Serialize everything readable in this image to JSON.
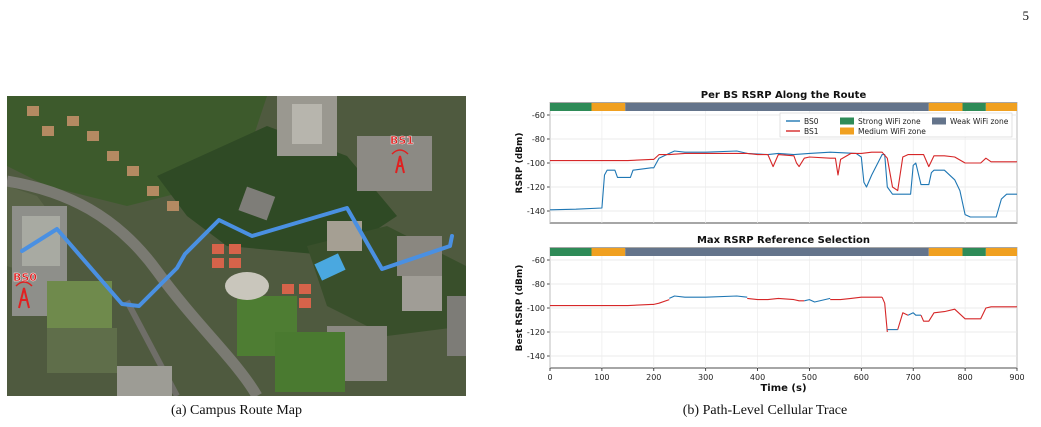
{
  "page_number": "5",
  "map": {
    "route_color": "#4a90e2",
    "labels": [
      {
        "text": "BS1",
        "color": "#e02020"
      },
      {
        "text": "BS0",
        "color": "#e02020"
      }
    ]
  },
  "captions": {
    "a": "(a) Campus Route Map",
    "b": "(b) Path-Level Cellular Trace"
  },
  "chart_data": [
    {
      "type": "line",
      "title": "Per BS RSRP Along the Route",
      "xlabel": "",
      "ylabel": "RSRP (dBm)",
      "xlim": [
        0,
        900
      ],
      "ylim": [
        -150,
        -50
      ],
      "yticks": [
        -60,
        -80,
        -100,
        -120,
        -140
      ],
      "grid": true,
      "legend_position": "top-right",
      "zones": [
        {
          "label": "Strong WiFi zone",
          "color": "#2e8b57",
          "start": 0,
          "end": 80
        },
        {
          "label": "Medium WiFi zone",
          "color": "#f0a020",
          "start": 80,
          "end": 145
        },
        {
          "label": "Weak WiFi zone",
          "color": "#64748b",
          "start": 145,
          "end": 730
        },
        {
          "label": "Medium WiFi zone",
          "color": "#f0a020",
          "start": 730,
          "end": 795
        },
        {
          "label": "Strong WiFi zone",
          "color": "#2e8b57",
          "start": 795,
          "end": 840
        },
        {
          "label": "Medium WiFi zone",
          "color": "#f0a020",
          "start": 840,
          "end": 900
        }
      ],
      "legend": [
        {
          "label": "BS0",
          "kind": "line",
          "color": "#1f77b4"
        },
        {
          "label": "BS1",
          "kind": "line",
          "color": "#d62728"
        },
        {
          "label": "Strong WiFi zone",
          "kind": "patch",
          "color": "#2e8b57"
        },
        {
          "label": "Medium WiFi zone",
          "kind": "patch",
          "color": "#f0a020"
        },
        {
          "label": "Weak WiFi zone",
          "kind": "patch",
          "color": "#64748b"
        }
      ],
      "series": [
        {
          "name": "BS0",
          "color": "#1f77b4",
          "x": [
            0,
            50,
            100,
            105,
            110,
            125,
            130,
            155,
            160,
            195,
            200,
            210,
            230,
            240,
            260,
            300,
            360,
            380,
            420,
            440,
            470,
            500,
            540,
            590,
            600,
            605,
            610,
            620,
            640,
            645,
            650,
            660,
            665,
            670,
            695,
            700,
            705,
            715,
            720,
            730,
            735,
            740,
            760,
            780,
            790,
            800,
            810,
            830,
            840,
            850,
            860,
            870,
            880,
            890,
            900
          ],
          "y": [
            -139,
            -138.5,
            -137.5,
            -110,
            -106,
            -106,
            -112,
            -112,
            -106,
            -104,
            -104,
            -96,
            -92,
            -90,
            -91,
            -91,
            -90,
            -92,
            -93,
            -92,
            -93,
            -92,
            -91,
            -92,
            -95,
            -116,
            -120,
            -110,
            -93,
            -93,
            -120,
            -126,
            -126,
            -126,
            -126,
            -102,
            -100,
            -118,
            -118,
            -118,
            -108,
            -106,
            -106,
            -114,
            -123,
            -143,
            -145,
            -145,
            -145,
            -145,
            -145,
            -130,
            -126,
            -126,
            -126
          ]
        },
        {
          "name": "BS1",
          "color": "#d62728",
          "x": [
            0,
            100,
            150,
            195,
            200,
            210,
            230,
            260,
            300,
            360,
            380,
            400,
            420,
            430,
            440,
            470,
            475,
            480,
            490,
            500,
            540,
            550,
            555,
            560,
            580,
            590,
            600,
            620,
            630,
            640,
            650,
            660,
            670,
            680,
            690,
            700,
            720,
            730,
            740,
            760,
            780,
            800,
            830,
            840,
            850,
            870,
            900
          ],
          "y": [
            -98,
            -98,
            -98,
            -97,
            -97,
            -93,
            -93,
            -92,
            -92,
            -92,
            -92,
            -93,
            -93,
            -103,
            -93,
            -94,
            -100,
            -103,
            -96,
            -95,
            -96,
            -96,
            -110,
            -97,
            -92,
            -92,
            -92,
            -91,
            -91,
            -91,
            -96,
            -120,
            -123,
            -95,
            -93,
            -93,
            -93,
            -103,
            -94,
            -94,
            -95,
            -100,
            -100,
            -96,
            -99,
            -99,
            -99
          ]
        }
      ]
    },
    {
      "type": "line",
      "title": "Max RSRP Reference Selection",
      "xlabel": "Time (s)",
      "ylabel": "Best RSRP (dBm)",
      "xlim": [
        0,
        900
      ],
      "ylim": [
        -150,
        -50
      ],
      "xticks": [
        0,
        100,
        200,
        300,
        400,
        500,
        600,
        700,
        800,
        900
      ],
      "yticks": [
        -60,
        -80,
        -100,
        -120,
        -140
      ],
      "grid": true,
      "zones": [
        {
          "label": "Strong WiFi zone",
          "color": "#2e8b57",
          "start": 0,
          "end": 80
        },
        {
          "label": "Medium WiFi zone",
          "color": "#f0a020",
          "start": 80,
          "end": 145
        },
        {
          "label": "Weak WiFi zone",
          "color": "#64748b",
          "start": 145,
          "end": 730
        },
        {
          "label": "Medium WiFi zone",
          "color": "#f0a020",
          "start": 730,
          "end": 795
        },
        {
          "label": "Strong WiFi zone",
          "color": "#2e8b57",
          "start": 795,
          "end": 840
        },
        {
          "label": "Medium WiFi zone",
          "color": "#f0a020",
          "start": 840,
          "end": 900
        }
      ],
      "segments": [
        {
          "source": "BS1",
          "color": "#d62728",
          "x": [
            0,
            100,
            150,
            195,
            200,
            210,
            230
          ],
          "y": [
            -98,
            -98,
            -98,
            -97,
            -97,
            -96,
            -93
          ]
        },
        {
          "source": "BS0",
          "color": "#1f77b4",
          "x": [
            230,
            240,
            260,
            300,
            360,
            380
          ],
          "y": [
            -92,
            -90,
            -91,
            -91,
            -90,
            -91
          ]
        },
        {
          "source": "BS1",
          "color": "#d62728",
          "x": [
            380,
            400,
            420,
            440,
            470,
            480,
            490
          ],
          "y": [
            -92,
            -93,
            -93,
            -92,
            -93,
            -94,
            -94
          ]
        },
        {
          "source": "BS0",
          "color": "#1f77b4",
          "x": [
            490,
            500,
            510,
            540
          ],
          "y": [
            -94,
            -93,
            -95,
            -92
          ]
        },
        {
          "source": "BS1",
          "color": "#d62728",
          "x": [
            540,
            560,
            580,
            600,
            620,
            640
          ],
          "y": [
            -93,
            -93,
            -92,
            -91,
            -91,
            -91
          ]
        },
        {
          "source": "BS1",
          "color": "#d62728",
          "x": [
            640,
            645,
            650
          ],
          "y": [
            -91,
            -96,
            -120
          ]
        },
        {
          "source": "BS0",
          "color": "#1f77b4",
          "x": [
            650,
            670
          ],
          "y": [
            -118,
            -118
          ]
        },
        {
          "source": "BS1",
          "color": "#d62728",
          "x": [
            670,
            680,
            690
          ],
          "y": [
            -118,
            -104,
            -106
          ]
        },
        {
          "source": "BS0",
          "color": "#1f77b4",
          "x": [
            690,
            700,
            705,
            715
          ],
          "y": [
            -106,
            -104,
            -106,
            -106
          ]
        },
        {
          "source": "BS1",
          "color": "#d62728",
          "x": [
            715,
            720,
            730,
            740,
            760,
            780,
            800,
            830,
            840,
            850,
            870,
            900
          ],
          "y": [
            -106,
            -111,
            -111,
            -104,
            -103,
            -101,
            -109,
            -109,
            -100,
            -99,
            -99,
            -99
          ]
        }
      ]
    }
  ]
}
